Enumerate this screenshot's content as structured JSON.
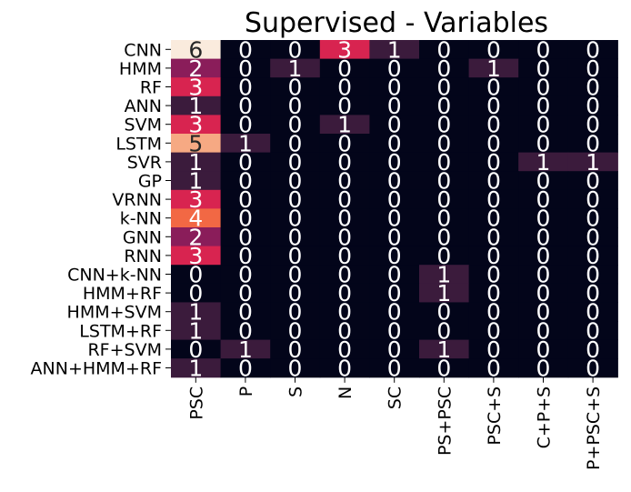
{
  "chart_data": {
    "type": "heatmap",
    "title": "Supervised - Variables",
    "xlabel": "",
    "ylabel": "",
    "columns": [
      "PSC",
      "P",
      "S",
      "N",
      "SC",
      "PS+PSC",
      "PSC+S",
      "C+P+S",
      "P+PSC+S"
    ],
    "rows": [
      "CNN",
      "HMM",
      "RF",
      "ANN",
      "SVM",
      "LSTM",
      "SVR",
      "GP",
      "VRNN",
      "k-NN",
      "GNN",
      "RNN",
      "CNN+k-NN",
      "HMM+RF",
      "HMM+SVM",
      "LSTM+RF",
      "RF+SVM",
      "ANN+HMM+RF"
    ],
    "values": [
      [
        6,
        0,
        0,
        3,
        1,
        0,
        0,
        0,
        0
      ],
      [
        2,
        0,
        1,
        0,
        0,
        0,
        1,
        0,
        0
      ],
      [
        3,
        0,
        0,
        0,
        0,
        0,
        0,
        0,
        0
      ],
      [
        1,
        0,
        0,
        0,
        0,
        0,
        0,
        0,
        0
      ],
      [
        3,
        0,
        0,
        1,
        0,
        0,
        0,
        0,
        0
      ],
      [
        5,
        1,
        0,
        0,
        0,
        0,
        0,
        0,
        0
      ],
      [
        1,
        0,
        0,
        0,
        0,
        0,
        0,
        1,
        1
      ],
      [
        1,
        0,
        0,
        0,
        0,
        0,
        0,
        0,
        0
      ],
      [
        3,
        0,
        0,
        0,
        0,
        0,
        0,
        0,
        0
      ],
      [
        4,
        0,
        0,
        0,
        0,
        0,
        0,
        0,
        0
      ],
      [
        2,
        0,
        0,
        0,
        0,
        0,
        0,
        0,
        0
      ],
      [
        3,
        0,
        0,
        0,
        0,
        0,
        0,
        0,
        0
      ],
      [
        0,
        0,
        0,
        0,
        0,
        1,
        0,
        0,
        0
      ],
      [
        0,
        0,
        0,
        0,
        0,
        1,
        0,
        0,
        0
      ],
      [
        1,
        0,
        0,
        0,
        0,
        0,
        0,
        0,
        0
      ],
      [
        1,
        0,
        0,
        0,
        0,
        0,
        0,
        0,
        0
      ],
      [
        0,
        1,
        0,
        0,
        0,
        1,
        0,
        0,
        0
      ],
      [
        1,
        0,
        0,
        0,
        0,
        0,
        0,
        0,
        0
      ]
    ],
    "color_scale": {
      "0": "#03051a",
      "1": "#3b1b3c",
      "2": "#8a1d5a",
      "3": "#d82450",
      "4": "#f26844",
      "5": "#f6a983",
      "6": "#faebdd"
    },
    "label_colors": {
      "dark_text": "#262626",
      "light_text": "#ffffff"
    },
    "colorbar": false,
    "grid": false
  }
}
